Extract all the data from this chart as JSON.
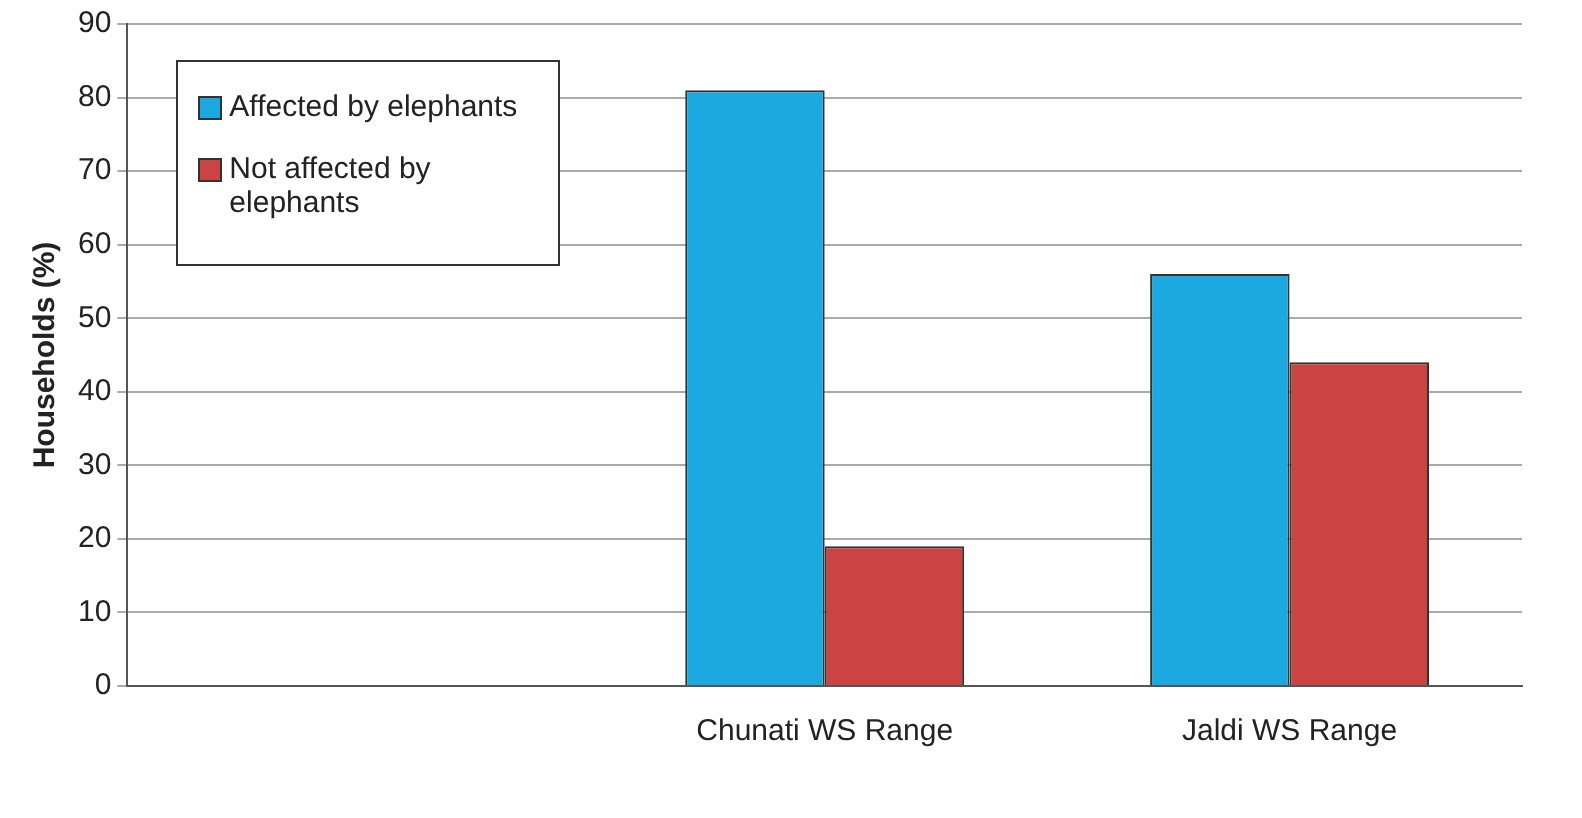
{
  "chart_data": {
    "type": "bar",
    "ylabel": "Households (%)",
    "categories": [
      null,
      "Chunati WS Range",
      "Jaldi WS Range"
    ],
    "series": [
      {
        "name": "Affected by elephants",
        "color": "#1ba9df",
        "values": [
          null,
          81,
          56
        ]
      },
      {
        "name": "Not affected by elephants",
        "color": "#cc4343",
        "values": [
          null,
          19,
          44
        ]
      }
    ],
    "ylim": [
      0,
      90
    ],
    "yticks": [
      0,
      10,
      20,
      30,
      40,
      50,
      60,
      70,
      80,
      90
    ],
    "grid": "y",
    "legend": "top left"
  }
}
